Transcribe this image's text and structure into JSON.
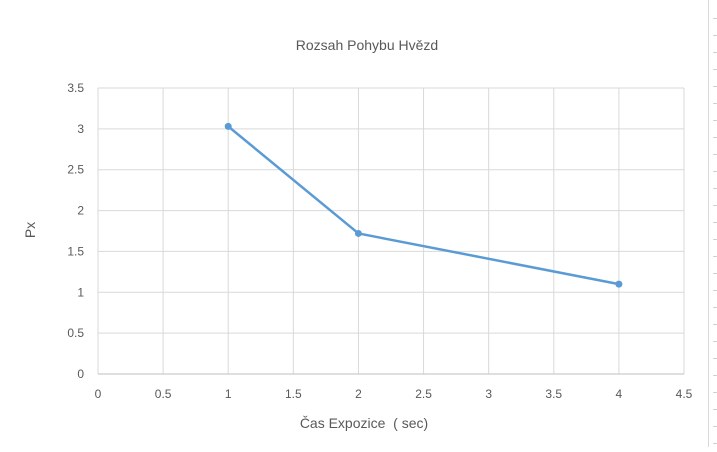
{
  "chart_data": {
    "type": "scatter",
    "title": "Rozsah Pohybu Hvězd",
    "xlabel": "Čas Expozice  ( sec)",
    "ylabel": "Px",
    "xlim": [
      0,
      4.5
    ],
    "ylim": [
      0,
      3.5
    ],
    "xticks": [
      "0",
      "0.5",
      "1",
      "1.5",
      "2",
      "2.5",
      "3",
      "3.5",
      "4",
      "4.5"
    ],
    "yticks": [
      "0",
      "0.5",
      "1",
      "1.5",
      "2",
      "2.5",
      "3",
      "3.5"
    ],
    "grid": true,
    "legend": "none",
    "series": [
      {
        "x": [
          1,
          2,
          4
        ],
        "y": [
          3.03,
          1.72,
          1.1
        ],
        "color": "#5b9bd5"
      }
    ]
  }
}
